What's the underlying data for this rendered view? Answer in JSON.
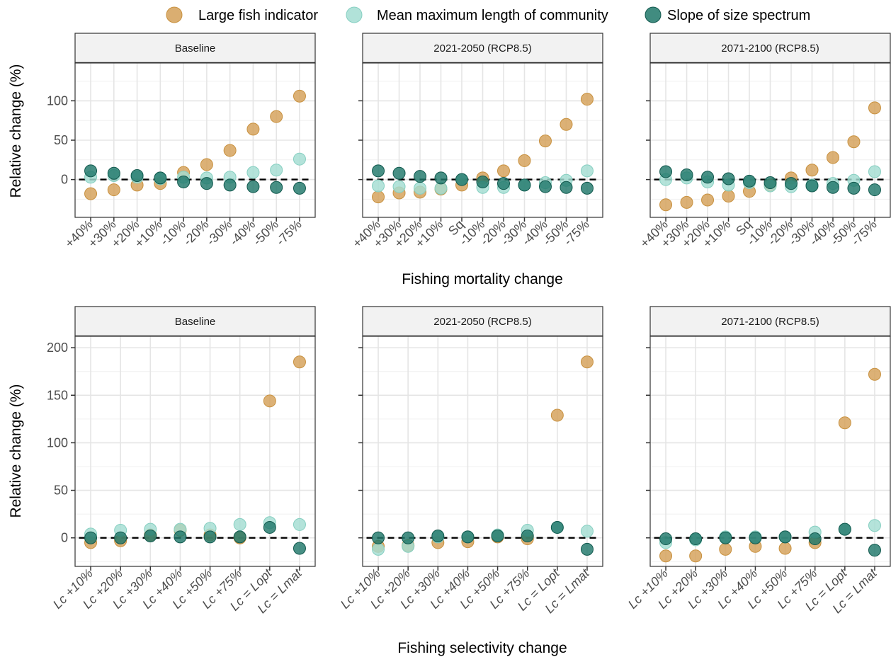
{
  "legend": {
    "items": [
      {
        "label": "Large fish indicator",
        "color": "#D4A058"
      },
      {
        "label": "Mean maximum length of community",
        "color": "#A3DDD2"
      },
      {
        "label": "Slope of size spectrum",
        "color": "#20786A"
      }
    ]
  },
  "rows": [
    {
      "xlabel": "Fishing mortality change",
      "ylabel": "Relative change (%)"
    },
    {
      "xlabel": "Fishing selectivity change",
      "ylabel": "Relative change (%)"
    }
  ],
  "chart_data": [
    {
      "type": "scatter",
      "panel": "Baseline",
      "row": 0,
      "categories": [
        "+40%",
        "+30%",
        "+20%",
        "+10%",
        "-10%",
        "-20%",
        "-30%",
        "-40%",
        "-50%",
        "-75%"
      ],
      "ylim": [
        -48,
        148
      ],
      "yticks": [
        0,
        50,
        100
      ],
      "grid": true,
      "reference_line": 0,
      "series": [
        {
          "name": "Large fish indicator",
          "values": [
            -18,
            -13,
            -7,
            -5,
            9,
            19,
            37,
            64,
            80,
            106
          ]
        },
        {
          "name": "Mean maximum length of community",
          "values": [
            3,
            5,
            3,
            1,
            3,
            2,
            3,
            9,
            12,
            26
          ]
        },
        {
          "name": "Slope of size spectrum",
          "values": [
            11,
            8,
            5,
            2,
            -3,
            -5,
            -7,
            -9,
            -10,
            -11
          ]
        }
      ]
    },
    {
      "type": "scatter",
      "panel": "2021-2050 (RCP8.5)",
      "row": 0,
      "categories": [
        "+40%",
        "+30%",
        "+20%",
        "+10%",
        "Sq",
        "-10%",
        "-20%",
        "-30%",
        "-40%",
        "-50%",
        "-75%"
      ],
      "ylim": [
        -48,
        148
      ],
      "yticks": [
        0,
        50,
        100
      ],
      "grid": true,
      "reference_line": 0,
      "series": [
        {
          "name": "Large fish indicator",
          "values": [
            -22,
            -17,
            -16,
            -12,
            -7,
            2,
            11,
            24,
            49,
            70,
            102
          ]
        },
        {
          "name": "Mean maximum length of community",
          "values": [
            -8,
            -9,
            -11,
            -11,
            0,
            -10,
            -10,
            -7,
            -4,
            -1,
            11
          ]
        },
        {
          "name": "Slope of size spectrum",
          "values": [
            11,
            8,
            4,
            2,
            0,
            -3,
            -5,
            -7,
            -9,
            -10,
            -11
          ]
        }
      ]
    },
    {
      "type": "scatter",
      "panel": "2071-2100 (RCP8.5)",
      "row": 0,
      "categories": [
        "+40%",
        "+30%",
        "+20%",
        "+10%",
        "Sq",
        "-10%",
        "-20%",
        "-30%",
        "-40%",
        "-50%",
        "-75%"
      ],
      "ylim": [
        -48,
        148
      ],
      "yticks": [
        0,
        50,
        100
      ],
      "grid": true,
      "reference_line": 0,
      "series": [
        {
          "name": "Large fish indicator",
          "values": [
            -32,
            -29,
            -26,
            -21,
            -15,
            -7,
            2,
            12,
            28,
            48,
            91
          ]
        },
        {
          "name": "Mean maximum length of community",
          "values": [
            0,
            2,
            -3,
            -7,
            -4,
            -8,
            -9,
            -7,
            -5,
            -1,
            10
          ]
        },
        {
          "name": "Slope of size spectrum",
          "values": [
            10,
            6,
            3,
            1,
            -2,
            -4,
            -5,
            -8,
            -10,
            -11,
            -13
          ]
        }
      ]
    },
    {
      "type": "scatter",
      "panel": "Baseline",
      "row": 1,
      "categories": [
        "Lc +10%",
        "Lc +20%",
        "Lc +30%",
        "Lc +40%",
        "Lc +50%",
        "Lc +75%",
        "Lc = Lopt",
        "Lc = Lmat"
      ],
      "ylim": [
        -30,
        212
      ],
      "yticks": [
        0,
        50,
        100,
        150,
        200
      ],
      "grid": true,
      "reference_line": 0,
      "series": [
        {
          "name": "Large fish indicator",
          "values": [
            -5,
            -3,
            3,
            8,
            3,
            0,
            144,
            185
          ]
        },
        {
          "name": "Mean maximum length of community",
          "values": [
            4,
            8,
            9,
            9,
            10,
            14,
            16,
            14
          ]
        },
        {
          "name": "Slope of size spectrum",
          "values": [
            0,
            0,
            2,
            1,
            1,
            1,
            11,
            -11
          ]
        }
      ]
    },
    {
      "type": "scatter",
      "panel": "2021-2050 (RCP8.5)",
      "row": 1,
      "categories": [
        "Lc +10%",
        "Lc +20%",
        "Lc +30%",
        "Lc +40%",
        "Lc +50%",
        "Lc +75%",
        "Lc = Lopt",
        "Lc = Lmat"
      ],
      "ylim": [
        -30,
        212
      ],
      "yticks": [
        0,
        50,
        100,
        150,
        200
      ],
      "grid": true,
      "reference_line": 0,
      "series": [
        {
          "name": "Large fish indicator",
          "values": [
            -9,
            -8,
            -5,
            -4,
            1,
            -1,
            129,
            185
          ]
        },
        {
          "name": "Mean maximum length of community",
          "values": [
            -12,
            -9,
            1,
            1,
            3,
            8,
            11,
            7
          ]
        },
        {
          "name": "Slope of size spectrum",
          "values": [
            0,
            0,
            2,
            1,
            2,
            2,
            11,
            -12
          ]
        }
      ]
    },
    {
      "type": "scatter",
      "panel": "2071-2100 (RCP8.5)",
      "row": 1,
      "categories": [
        "Lc +10%",
        "Lc +20%",
        "Lc +30%",
        "Lc +40%",
        "Lc +50%",
        "Lc +75%",
        "Lc = Lopt",
        "Lc = Lmat"
      ],
      "ylim": [
        -30,
        212
      ],
      "yticks": [
        0,
        50,
        100,
        150,
        200
      ],
      "grid": true,
      "reference_line": 0,
      "series": [
        {
          "name": "Large fish indicator",
          "values": [
            -19,
            -19,
            -12,
            -9,
            -11,
            -5,
            121,
            172
          ]
        },
        {
          "name": "Mean maximum length of community",
          "values": [
            -5,
            -2,
            1,
            1,
            1,
            6,
            9,
            13
          ]
        },
        {
          "name": "Slope of size spectrum",
          "values": [
            -1,
            -1,
            0,
            0,
            1,
            -1,
            9,
            -13
          ]
        }
      ]
    }
  ]
}
